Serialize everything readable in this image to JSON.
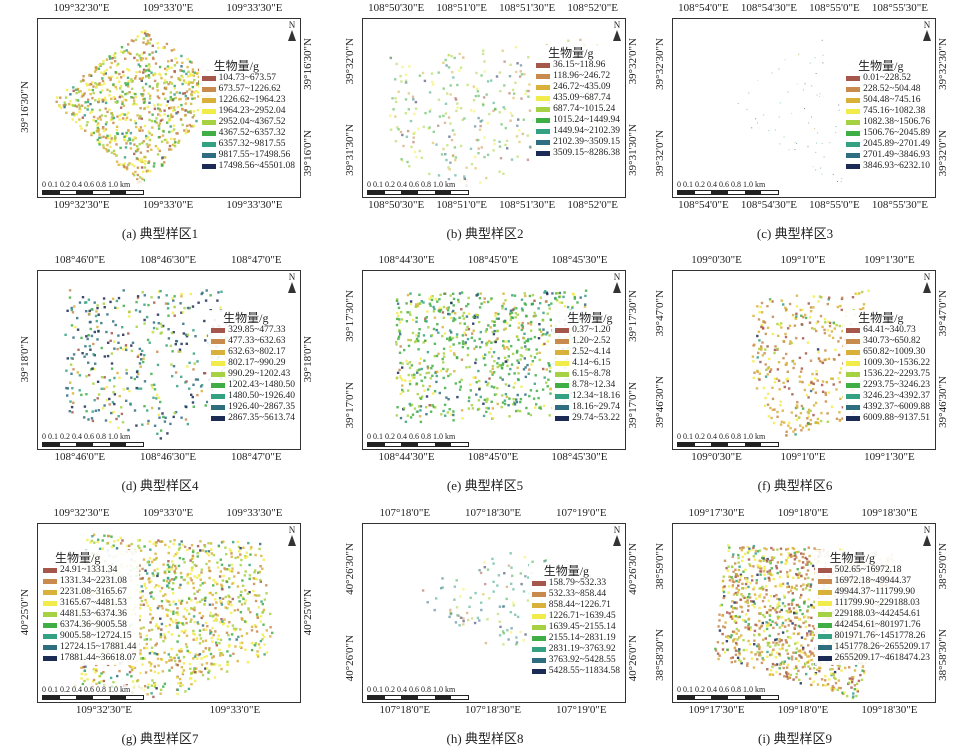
{
  "legend_title": "生物量/g",
  "scale_label": "0 0.1 0.2  0.4  0.6  0.8   1.0 km",
  "north_label": "N",
  "legend_colors": [
    "#a5574b",
    "#c98a4e",
    "#d9b13a",
    "#f2ec4a",
    "#a6d143",
    "#3fae44",
    "#34a183",
    "#2f6d80",
    "#1c2b56"
  ],
  "panels": [
    {
      "caption": "(a) 典型样区1",
      "top_ticks": [
        "109°32'30\"E",
        "109°33'0\"E",
        "109°33'30\"E"
      ],
      "bottom_ticks": [
        "109°32'30\"E",
        "109°33'0\"E",
        "109°33'30\"E"
      ],
      "left_ticks": [
        "39°16'30\"N"
      ],
      "right_ticks": [
        "39°16'30\"N",
        "39°16'0\"N"
      ],
      "legend": [
        "104.73~673.57",
        "673.57~1226.62",
        "1226.62~1964.23",
        "1964.23~2952.04",
        "2952.04~4367.52",
        "4367.52~6357.32",
        "6357.32~9817.55",
        "9817.55~17498.56",
        "17498.56~45501.08"
      ]
    },
    {
      "caption": "(b) 典型样区2",
      "top_ticks": [
        "108°50'30\"E",
        "108°51'0\"E",
        "108°51'30\"E",
        "108°52'0\"E"
      ],
      "bottom_ticks": [
        "108°50'30\"E",
        "108°51'0\"E",
        "108°51'30\"E",
        "108°52'0\"E"
      ],
      "left_ticks": [
        "39°32'0\"N",
        "39°31'30\"N"
      ],
      "right_ticks": [
        "39°32'0\"N",
        "39°31'30\"N"
      ],
      "legend": [
        "36.15~118.96",
        "118.96~246.72",
        "246.72~435.09",
        "435.09~687.74",
        "687.74~1015.24",
        "1015.24~1449.94",
        "1449.94~2102.39",
        "2102.39~3509.15",
        "3509.15~8286.38"
      ]
    },
    {
      "caption": "(c) 典型样区3",
      "top_ticks": [
        "108°54'0\"E",
        "108°54'30\"E",
        "108°55'0\"E",
        "108°55'30\"E"
      ],
      "bottom_ticks": [
        "108°54'0\"E",
        "108°54'30\"E",
        "108°55'0\"E",
        "108°55'30\"E"
      ],
      "left_ticks": [
        "39°32'30\"N",
        "39°32'0\"N"
      ],
      "right_ticks": [
        "39°32'30\"N",
        "39°32'0\"N"
      ],
      "legend": [
        "0.01~228.52",
        "228.52~504.48",
        "504.48~745.16",
        "745.16~1082.38",
        "1082.38~1506.76",
        "1506.76~2045.89",
        "2045.89~2701.49",
        "2701.49~3846.93",
        "3846.93~6232.10"
      ]
    },
    {
      "caption": "(d) 典型样区4",
      "top_ticks": [
        "108°46'0\"E",
        "108°46'30\"E",
        "108°47'0\"E"
      ],
      "bottom_ticks": [
        "108°46'0\"E",
        "108°46'30\"E",
        "108°47'0\"E"
      ],
      "left_ticks": [
        "39°18'0\"N"
      ],
      "right_ticks": [
        "39°18'0\"N"
      ],
      "legend": [
        "329.85~477.33",
        "477.33~632.63",
        "632.63~802.17",
        "802.17~990.29",
        "990.29~1202.43",
        "1202.43~1480.50",
        "1480.50~1926.40",
        "1926.40~2867.35",
        "2867.35~5613.74"
      ]
    },
    {
      "caption": "(e) 典型样区5",
      "top_ticks": [
        "108°44'30\"E",
        "108°45'0\"E",
        "108°45'30\"E"
      ],
      "bottom_ticks": [
        "108°44'30\"E",
        "108°45'0\"E",
        "108°45'30\"E"
      ],
      "left_ticks": [
        "39°17'30\"N",
        "39°17'0\"N"
      ],
      "right_ticks": [
        "39°17'30\"N",
        "39°17'0\"N"
      ],
      "legend": [
        "0.37~1.20",
        "1.20~2.52",
        "2.52~4.14",
        "4.14~6.15",
        "6.15~8.78",
        "8.78~12.34",
        "12.34~18.16",
        "18.16~29.74",
        "29.74~53.22"
      ]
    },
    {
      "caption": "(f) 典型样区6",
      "top_ticks": [
        "109°0'30\"E",
        "109°1'0\"E",
        "109°1'30\"E"
      ],
      "bottom_ticks": [
        "109°0'30\"E",
        "109°1'0\"E",
        "109°1'30\"E"
      ],
      "left_ticks": [
        "39°47'0\"N",
        "39°46'30\"N"
      ],
      "right_ticks": [
        "39°47'0\"N",
        "39°46'30\"N"
      ],
      "legend": [
        "64.41~340.73",
        "340.73~650.82",
        "650.82~1009.30",
        "1009.30~1536.22",
        "1536.22~2293.75",
        "2293.75~3246.23",
        "3246.23~4392.37",
        "4392.37~6009.88",
        "6009.88~9137.51"
      ]
    },
    {
      "caption": "(g) 典型样区7",
      "top_ticks": [
        "109°32'30\"E",
        "109°33'0\"E",
        "109°33'30\"E"
      ],
      "bottom_ticks": [
        "109°32'30\"E",
        "109°33'0\"E"
      ],
      "left_ticks": [
        "40°25'0\"N"
      ],
      "right_ticks": [
        "40°25'0\"N"
      ],
      "legend": [
        "24.91~1331.34",
        "1331.34~2231.08",
        "2231.08~3165.67",
        "3165.67~4481.53",
        "4481.53~6374.36",
        "6374.36~9005.58",
        "9005.58~12724.15",
        "12724.15~17881.44",
        "17881.44~36618.07"
      ]
    },
    {
      "caption": "(h) 典型样区8",
      "top_ticks": [
        "107°18'0\"E",
        "107°18'30\"E",
        "107°19'0\"E"
      ],
      "bottom_ticks": [
        "107°18'0\"E",
        "107°18'30\"E",
        "107°19'0\"E"
      ],
      "left_ticks": [
        "40°26'30\"N",
        "40°26'0\"N"
      ],
      "right_ticks": [
        "40°26'30\"N",
        "40°26'0\"N"
      ],
      "legend": [
        "158.79~532.33",
        "532.33~858.44",
        "858.44~1226.71",
        "1226.71~1639.45",
        "1639.45~2155.14",
        "2155.14~2831.19",
        "2831.19~3763.92",
        "3763.92~5428.55",
        "5428.55~11834.58"
      ]
    },
    {
      "caption": "(i) 典型样区9",
      "top_ticks": [
        "109°17'30\"E",
        "109°18'0\"E",
        "109°18'30\"E"
      ],
      "bottom_ticks": [
        "109°17'30\"E",
        "109°18'0\"E",
        "109°18'30\"E"
      ],
      "left_ticks": [
        "38°59'0\"N",
        "38°58'30\"N"
      ],
      "right_ticks": [
        "38°59'0\"N",
        "38°58'30\"N"
      ],
      "legend": [
        "502.65~16972.18",
        "16972.18~49944.37",
        "49944.37~111799.90",
        "111799.90~229188.03",
        "229188.03~442454.61",
        "442454.61~801971.76",
        "801971.76~1451778.26",
        "1451778.26~2655209.17",
        "2655209.17~4618474.23"
      ]
    }
  ]
}
